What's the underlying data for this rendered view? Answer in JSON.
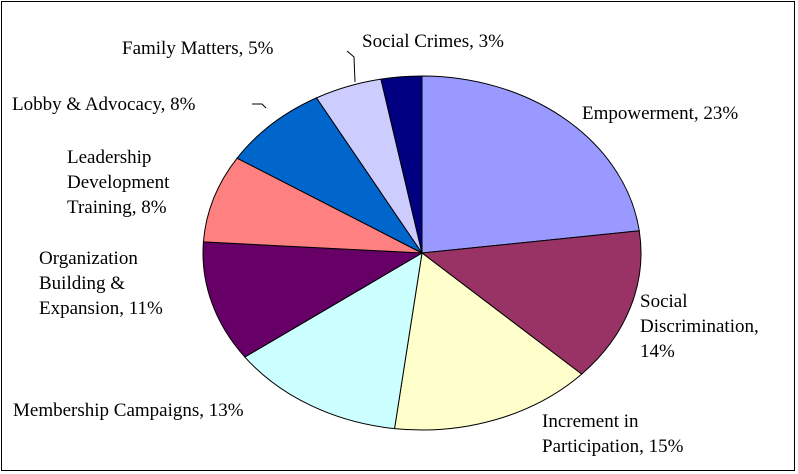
{
  "chart_data": {
    "type": "pie",
    "title": "",
    "start_angle_deg": 0,
    "direction": "clockwise",
    "slices": [
      {
        "label": "Empowerment",
        "value": 23,
        "display_pct": "23%",
        "color": "#9999FF",
        "label_lines": [
          "Empowerment, 23%"
        ]
      },
      {
        "label": "Social Discrimination",
        "value": 14,
        "display_pct": "14%",
        "color": "#993366",
        "label_lines": [
          "Social",
          "Discrimination,",
          "14%"
        ]
      },
      {
        "label": "Increment in Participation",
        "value": 15,
        "display_pct": "15%",
        "color": "#FFFFCC",
        "label_lines": [
          "Increment in",
          "Participation, 15%"
        ]
      },
      {
        "label": "Membership Campaigns",
        "value": 13,
        "display_pct": "13%",
        "color": "#CCFFFF",
        "label_lines": [
          "Membership Campaigns, 13%"
        ]
      },
      {
        "label": "Organization Building & Expansion",
        "value": 11,
        "display_pct": "11%",
        "color": "#660066",
        "label_lines": [
          "Organization",
          "Building &",
          "Expansion, 11%"
        ]
      },
      {
        "label": "Leadership Development Training",
        "value": 8,
        "display_pct": "8%",
        "color": "#FF8080",
        "label_lines": [
          "Leadership",
          "Development",
          "Training, 8%"
        ]
      },
      {
        "label": "Lobby & Advocacy",
        "value": 8,
        "display_pct": "8%",
        "color": "#0066CC",
        "label_lines": [
          "Lobby & Advocacy, 8%"
        ]
      },
      {
        "label": "Family Matters",
        "value": 5,
        "display_pct": "5%",
        "color": "#CCCCFF",
        "label_lines": [
          "Family Matters, 5%"
        ]
      },
      {
        "label": "Social Crimes",
        "value": 3,
        "display_pct": "3%",
        "color": "#000080",
        "label_lines": [
          "Social Crimes, 3%"
        ]
      }
    ],
    "legend": "none",
    "data_labels": "category, percent"
  }
}
